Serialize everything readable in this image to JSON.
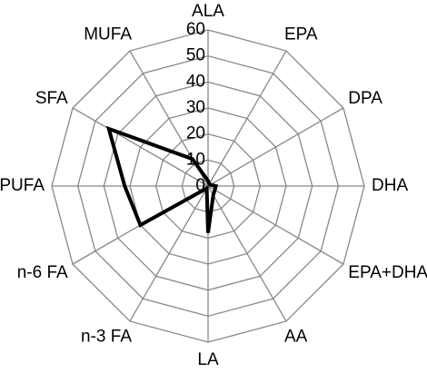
{
  "chart_data": {
    "type": "radar",
    "categories": [
      "ALA",
      "EPA",
      "DPA",
      "DHA",
      "EPA+DHA",
      "AA",
      "LA",
      "n-3 FA",
      "n-6 FA",
      "PUFA",
      "SFA",
      "MUFA"
    ],
    "series": [
      {
        "color": "#000000",
        "values": [
          2,
          1,
          1,
          3,
          3,
          4,
          18,
          1,
          30,
          32,
          44,
          12
        ]
      }
    ],
    "ylim": [
      0,
      60
    ],
    "yticks": [
      0,
      10,
      20,
      30,
      40,
      50,
      60
    ],
    "grid": true
  }
}
